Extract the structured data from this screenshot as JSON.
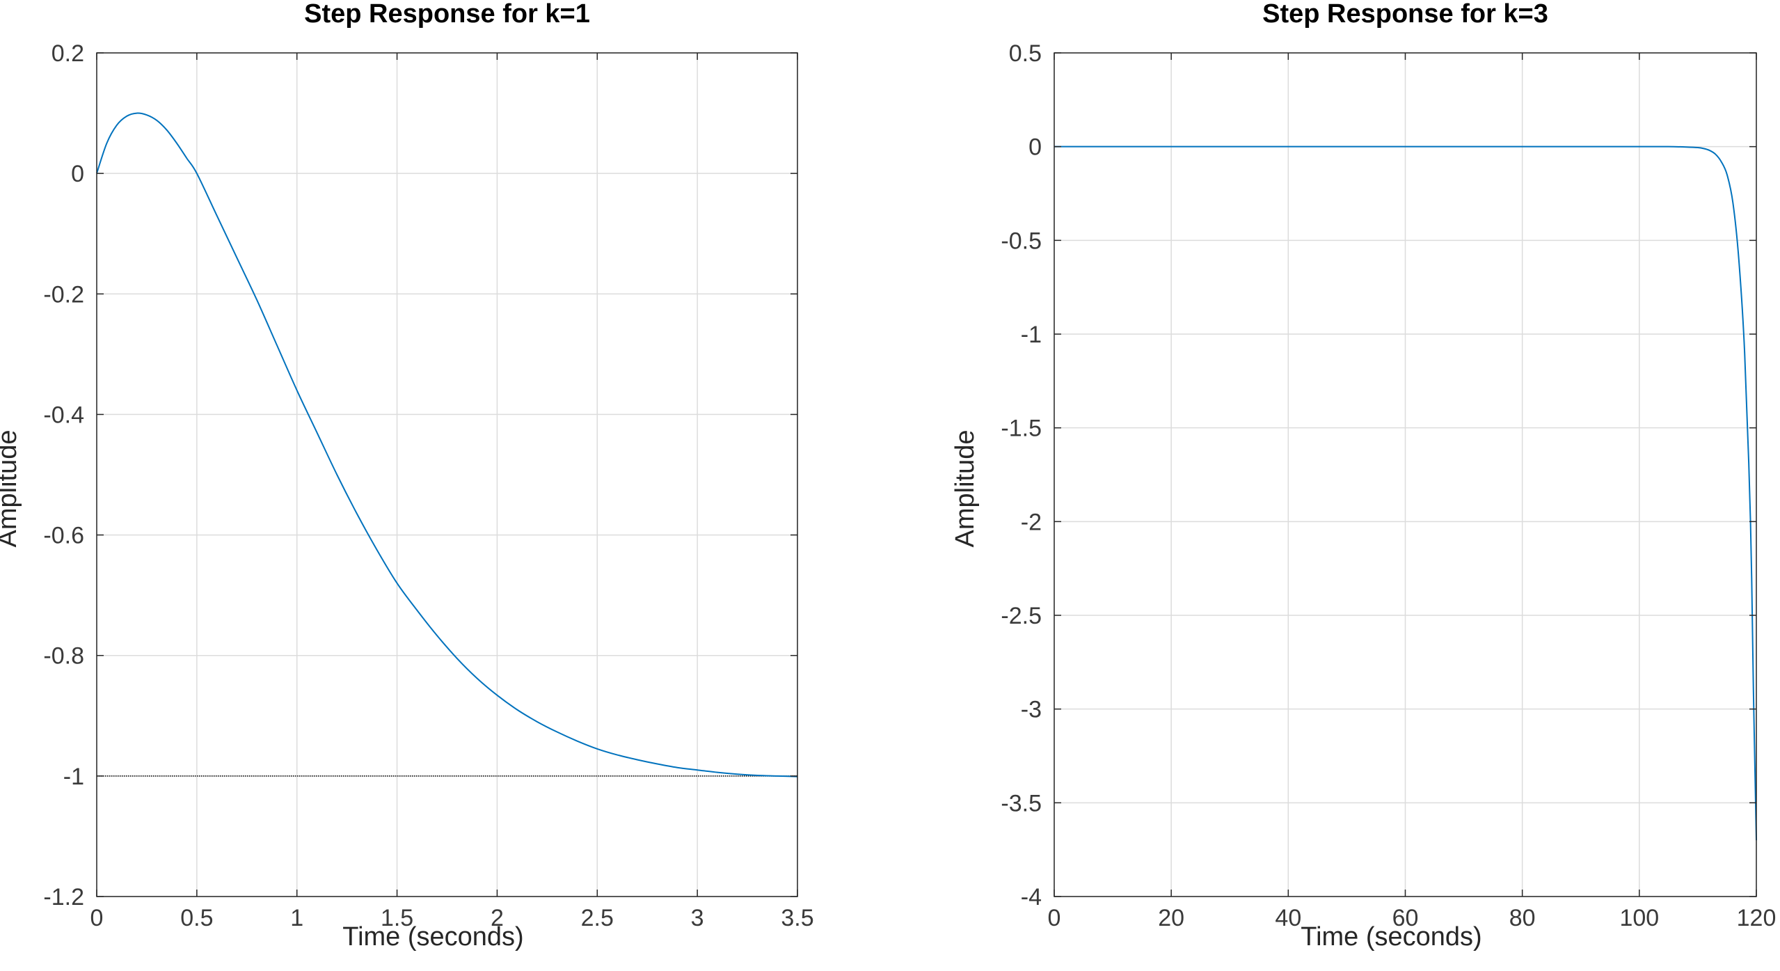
{
  "chart_data": [
    {
      "type": "line",
      "title": "Step Response for k=1",
      "xlabel": "Time (seconds)",
      "ylabel": "Amplitude",
      "xlim": [
        0,
        3.5
      ],
      "ylim": [
        -1.2,
        0.2
      ],
      "xticks": [
        0,
        0.5,
        1,
        1.5,
        2,
        2.5,
        3,
        3.5
      ],
      "xtick_labels": [
        "0",
        "0.5",
        "1",
        "1.5",
        "2",
        "2.5",
        "3",
        "3.5"
      ],
      "yticks": [
        0.2,
        0,
        -0.2,
        -0.4,
        -0.6,
        -0.8,
        -1,
        -1.2
      ],
      "ytick_labels": [
        "0.2",
        "0",
        "-0.2",
        "-0.4",
        "-0.6",
        "-0.8",
        "-1",
        "-1.2"
      ],
      "grid": true,
      "series": [
        {
          "color": "#0072bd",
          "x": [
            0,
            0.05,
            0.1,
            0.15,
            0.2,
            0.25,
            0.3,
            0.35,
            0.4,
            0.45,
            0.5,
            0.6,
            0.7,
            0.8,
            0.9,
            1.0,
            1.1,
            1.2,
            1.3,
            1.4,
            1.5,
            1.6,
            1.7,
            1.8,
            1.9,
            2.0,
            2.1,
            2.2,
            2.3,
            2.4,
            2.5,
            2.6,
            2.7,
            2.8,
            2.9,
            3.0,
            3.1,
            3.2,
            3.3,
            3.4,
            3.5
          ],
          "y": [
            0,
            0.05,
            0.08,
            0.095,
            0.1,
            0.097,
            0.088,
            0.072,
            0.05,
            0.025,
            0,
            -0.07,
            -0.14,
            -0.21,
            -0.285,
            -0.36,
            -0.43,
            -0.5,
            -0.565,
            -0.625,
            -0.68,
            -0.725,
            -0.767,
            -0.805,
            -0.838,
            -0.866,
            -0.89,
            -0.91,
            -0.927,
            -0.942,
            -0.955,
            -0.965,
            -0.973,
            -0.98,
            -0.986,
            -0.99,
            -0.994,
            -0.997,
            -0.999,
            -1.0,
            -1.001
          ]
        }
      ],
      "reference_line": {
        "y": -1,
        "color": "#000000",
        "style": "dotted"
      }
    },
    {
      "type": "line",
      "title": "Step Response for k=3",
      "xlabel": "Time (seconds)",
      "ylabel": "Amplitude",
      "xlim": [
        0,
        120
      ],
      "ylim": [
        -4,
        0.5
      ],
      "xticks": [
        0,
        20,
        40,
        60,
        80,
        100,
        120
      ],
      "xtick_labels": [
        "0",
        "20",
        "40",
        "60",
        "80",
        "100",
        "120"
      ],
      "yticks": [
        0.5,
        0,
        -0.5,
        -1,
        -1.5,
        -2,
        -2.5,
        -3,
        -3.5,
        -4
      ],
      "ytick_labels": [
        "0.5",
        "0",
        "-0.5",
        "-1",
        "-1.5",
        "-2",
        "-2.5",
        "-3",
        "-3.5",
        "-4"
      ],
      "grid": true,
      "series": [
        {
          "color": "#0072bd",
          "x": [
            0,
            20,
            40,
            60,
            80,
            100,
            105,
            108,
            110,
            111,
            112,
            113,
            114,
            115,
            116,
            117,
            118,
            119,
            119.5,
            120
          ],
          "y": [
            0,
            0,
            0,
            0,
            0,
            0,
            0,
            -0.002,
            -0.005,
            -0.01,
            -0.02,
            -0.04,
            -0.08,
            -0.15,
            -0.3,
            -0.6,
            -1.1,
            -2.0,
            -2.9,
            -3.7
          ]
        }
      ]
    }
  ]
}
